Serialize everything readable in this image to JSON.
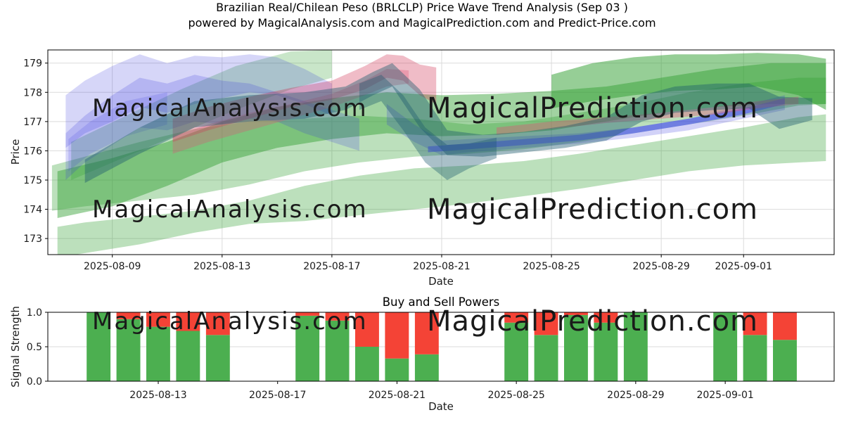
{
  "title": {
    "line1": "Brazilian Real/Chilean Peso (BRLCLP) Price Wave Trend Analysis (Sep 03 )",
    "line2": "powered by MagicalAnalysis.com and MagicalPrediction.com and Predict-Price.com"
  },
  "watermarks": {
    "left_text": "MagicalAnalysis.com",
    "right_text": "MagicalPrediction.com"
  },
  "style": {
    "background": "#ffffff",
    "grid_color": "#dbdbdb",
    "spine_color": "#000000",
    "text_color": "#1a1a1a",
    "watermark_color": "rgba(108,122,108,0.18)"
  },
  "chart_data": [
    {
      "type": "area",
      "title": "Brazilian Real/Chilean Peso (BRLCLP) Price Wave Trend Analysis (Sep 03 )",
      "subtitle": "powered by MagicalAnalysis.com and MagicalPrediction.com and Predict-Price.com",
      "xlabel": "Date",
      "ylabel": "Price",
      "grid": true,
      "x_epoch": "2025-08-06",
      "xlim_days": [
        0.65,
        29.3
      ],
      "ylim": [
        172.45,
        179.45
      ],
      "x_ticks": [
        "2025-08-09",
        "2025-08-13",
        "2025-08-17",
        "2025-08-21",
        "2025-08-25",
        "2025-08-29",
        "2025-09-01"
      ],
      "y_ticks": [
        173,
        174,
        175,
        176,
        177,
        178,
        179
      ],
      "bands": [
        {
          "name": "green-rising-left",
          "color": "#2e9e2e",
          "opacity": 0.26,
          "x": [
            1.5,
            3.5,
            5.5,
            7.5,
            9.5,
            11
          ],
          "lower": [
            175.0,
            175.8,
            176.6,
            177.4,
            178.1,
            178.5
          ],
          "upper": [
            176.3,
            177.2,
            178.1,
            178.9,
            179.4,
            179.45
          ]
        },
        {
          "name": "green-pale-lower",
          "color": "#2e9e2e",
          "opacity": 0.32,
          "x": [
            1.0,
            2,
            4,
            6,
            8,
            10,
            12,
            14,
            16,
            18,
            20,
            22,
            24,
            26,
            28,
            29
          ],
          "lower": [
            172.35,
            172.5,
            172.8,
            173.2,
            173.5,
            173.6,
            173.8,
            174.0,
            174.2,
            174.45,
            174.7,
            175.0,
            175.3,
            175.5,
            175.6,
            175.65
          ],
          "upper": [
            173.4,
            173.55,
            173.75,
            173.95,
            174.3,
            174.8,
            175.15,
            175.4,
            175.5,
            175.65,
            175.9,
            176.2,
            176.5,
            176.8,
            177.15,
            177.25
          ]
        },
        {
          "name": "green-pale-upper",
          "color": "#2e9e2e",
          "opacity": 0.32,
          "x": [
            0.8,
            2,
            4,
            6,
            8,
            10,
            12,
            14,
            16,
            18,
            20,
            22,
            24,
            26,
            28,
            29
          ],
          "lower": [
            173.95,
            174.1,
            174.3,
            174.5,
            174.85,
            175.3,
            175.6,
            175.8,
            175.9,
            176.05,
            176.3,
            176.6,
            176.9,
            177.2,
            177.55,
            177.6
          ],
          "upper": [
            175.5,
            175.8,
            176.3,
            176.75,
            177.0,
            177.1,
            177.2,
            177.1,
            176.9,
            177.0,
            177.3,
            177.6,
            178.0,
            178.3,
            178.5,
            178.5
          ]
        },
        {
          "name": "green-mid",
          "color": "#2e9e2e",
          "opacity": 0.45,
          "x": [
            1,
            3,
            5,
            7,
            9,
            11,
            13,
            15,
            17,
            19,
            21,
            23,
            25,
            27,
            29
          ],
          "lower": [
            173.7,
            174.1,
            174.8,
            175.6,
            176.1,
            176.4,
            176.6,
            176.5,
            176.55,
            176.7,
            177.0,
            177.3,
            177.5,
            177.6,
            177.6
          ],
          "upper": [
            175.3,
            175.75,
            176.3,
            177.0,
            177.5,
            177.8,
            178.0,
            177.9,
            177.95,
            178.05,
            178.2,
            178.5,
            178.8,
            179.0,
            179.0
          ]
        },
        {
          "name": "blue-fan-1",
          "color": "#3333dd",
          "opacity": 0.2,
          "x": [
            1.3,
            2,
            3,
            4,
            5,
            6,
            7,
            8,
            9,
            10,
            11
          ],
          "lower": [
            176.1,
            176.6,
            177.0,
            177.5,
            177.3,
            177.6,
            177.8,
            178.0,
            177.9,
            177.6,
            177.2
          ],
          "upper": [
            177.9,
            178.4,
            178.9,
            179.3,
            179.0,
            179.25,
            179.2,
            179.3,
            179.2,
            178.8,
            178.3
          ]
        },
        {
          "name": "blue-fan-2",
          "color": "#3333dd",
          "opacity": 0.2,
          "x": [
            1.3,
            2,
            3,
            4,
            5,
            6,
            7,
            8,
            9,
            10,
            11,
            12
          ],
          "lower": [
            175.0,
            175.6,
            176.2,
            176.8,
            176.7,
            177.0,
            176.9,
            177.1,
            177.0,
            176.6,
            176.3,
            176.0
          ],
          "upper": [
            176.6,
            177.2,
            177.9,
            178.5,
            178.3,
            178.6,
            178.4,
            178.3,
            178.0,
            177.7,
            177.4,
            177.1
          ]
        },
        {
          "name": "blue-fan-3",
          "color": "#3333dd",
          "opacity": 0.16,
          "x": [
            1.4,
            2.2,
            3.5,
            5
          ],
          "lower": [
            175.3,
            175.9,
            176.5,
            176.9
          ],
          "upper": [
            176.4,
            177.0,
            177.7,
            178.0
          ]
        },
        {
          "name": "red-crest",
          "color": "#cc2244",
          "opacity": 0.3,
          "x": [
            5.2,
            6.5,
            8,
            9.5,
            11,
            12.2,
            13,
            13.6,
            14.2,
            14.8
          ],
          "lower": [
            176.3,
            176.7,
            177.1,
            177.5,
            177.75,
            178.1,
            178.5,
            178.4,
            177.9,
            177.6
          ],
          "upper": [
            177.1,
            177.5,
            177.85,
            178.15,
            178.4,
            178.9,
            179.3,
            179.25,
            178.95,
            178.85
          ]
        },
        {
          "name": "pink-band",
          "color": "#dd5577",
          "opacity": 0.32,
          "x": [
            5.2,
            6.5,
            8,
            9.5,
            11,
            12.2,
            13,
            13.8
          ],
          "lower": [
            175.9,
            176.3,
            176.7,
            177.1,
            177.5,
            177.9,
            178.2,
            178.3
          ],
          "upper": [
            176.5,
            176.9,
            177.3,
            177.6,
            177.95,
            178.4,
            178.8,
            178.75
          ]
        },
        {
          "name": "blue-band-right",
          "color": "#3333dd",
          "opacity": 0.22,
          "x": [
            13,
            14,
            15,
            16,
            18,
            20,
            22,
            24,
            26,
            27.5
          ],
          "lower": [
            176.9,
            176.3,
            175.85,
            175.95,
            176.1,
            176.25,
            176.45,
            176.7,
            177.1,
            177.4
          ],
          "upper": [
            177.6,
            176.9,
            176.35,
            176.4,
            176.5,
            176.6,
            176.8,
            177.1,
            177.55,
            177.9
          ]
        },
        {
          "name": "blue-line-right",
          "color": "#4444ff",
          "opacity": 0.5,
          "x": [
            14.5,
            16,
            18,
            20,
            22,
            24,
            26,
            27.5
          ],
          "lower": [
            175.95,
            176.05,
            176.2,
            176.35,
            176.6,
            176.9,
            177.25,
            177.6
          ],
          "upper": [
            176.15,
            176.25,
            176.4,
            176.55,
            176.8,
            177.1,
            177.45,
            177.8
          ]
        },
        {
          "name": "pink-line-right",
          "color": "#dd5577",
          "opacity": 0.4,
          "x": [
            17,
            19,
            21,
            23,
            25,
            26.5,
            28
          ],
          "lower": [
            176.55,
            176.75,
            176.95,
            177.1,
            177.25,
            177.45,
            177.6
          ],
          "upper": [
            176.8,
            177.0,
            177.15,
            177.3,
            177.5,
            177.7,
            177.85
          ]
        },
        {
          "name": "green-top-right",
          "color": "#2e9e2e",
          "opacity": 0.5,
          "x": [
            19,
            20.5,
            22,
            23.5,
            25,
            26.5,
            28,
            29
          ],
          "lower": [
            177.45,
            177.7,
            177.9,
            178.05,
            178.1,
            178.2,
            177.9,
            177.4
          ],
          "upper": [
            178.6,
            179.0,
            179.2,
            179.3,
            179.3,
            179.35,
            179.3,
            179.15
          ]
        },
        {
          "name": "teal-wave",
          "color": "#1d5a6e",
          "opacity": 0.42,
          "x": [
            2,
            4,
            6,
            8,
            10,
            11.5,
            12.5,
            13.2,
            14.2,
            15.2,
            16.5,
            18,
            19.5,
            21,
            22.3,
            23.5,
            25,
            26.2,
            27.3,
            28.5
          ],
          "lower": [
            174.9,
            175.9,
            176.8,
            177.0,
            177.1,
            177.4,
            177.9,
            178.2,
            176.8,
            175.85,
            175.8,
            175.95,
            176.1,
            176.35,
            177.0,
            177.3,
            177.4,
            177.45,
            176.75,
            177.05
          ],
          "upper": [
            175.7,
            176.8,
            177.7,
            177.9,
            178.0,
            178.2,
            178.7,
            179.0,
            178.1,
            176.7,
            176.55,
            176.65,
            176.85,
            177.15,
            177.9,
            178.2,
            178.3,
            178.3,
            177.85,
            177.8
          ]
        },
        {
          "name": "teal-dip",
          "color": "#1d5a6e",
          "opacity": 0.38,
          "x": [
            12,
            12.8,
            13.6,
            14.4,
            15.2,
            16,
            17
          ],
          "lower": [
            177.4,
            177.7,
            176.7,
            175.6,
            175.0,
            175.4,
            175.75
          ],
          "upper": [
            178.3,
            178.6,
            177.9,
            176.8,
            176.2,
            176.25,
            176.45
          ]
        }
      ]
    },
    {
      "type": "bar",
      "stacked": true,
      "title": "Buy and Sell Powers",
      "xlabel": "Date",
      "ylabel": "Signal Strength",
      "x_epoch": "2025-08-06",
      "xlim_days": [
        3.3,
        29.65
      ],
      "ylim": [
        0,
        1
      ],
      "bar_width_days": 0.8,
      "x_ticks": [
        "2025-08-13",
        "2025-08-17",
        "2025-08-21",
        "2025-08-25",
        "2025-08-29",
        "2025-09-01"
      ],
      "y_ticks": [
        {
          "label": "0.0",
          "v": 0
        },
        {
          "label": "0.5",
          "v": 0.5
        },
        {
          "label": "1.0",
          "v": 1
        }
      ],
      "categories": [
        "2025-08-11",
        "2025-08-12",
        "2025-08-13",
        "2025-08-14",
        "2025-08-15",
        "2025-08-18",
        "2025-08-19",
        "2025-08-20",
        "2025-08-21",
        "2025-08-22",
        "2025-08-25",
        "2025-08-26",
        "2025-08-27",
        "2025-08-28",
        "2025-08-29",
        "2025-09-01",
        "2025-09-02",
        "2025-09-03"
      ],
      "series": [
        {
          "name": "Buy Power",
          "color": "#4caf50",
          "values": [
            1.0,
            0.9,
            0.79,
            0.73,
            0.67,
            0.95,
            0.88,
            0.5,
            0.33,
            0.39,
            0.85,
            0.67,
            0.96,
            0.85,
            1.0,
            1.0,
            0.67,
            0.6
          ]
        },
        {
          "name": "Sell Power",
          "color": "#f44336",
          "values": [
            0.0,
            0.1,
            0.21,
            0.27,
            0.33,
            0.05,
            0.12,
            0.5,
            0.67,
            0.61,
            0.15,
            0.33,
            0.04,
            0.15,
            0.0,
            0.0,
            0.33,
            0.4
          ]
        }
      ]
    }
  ]
}
